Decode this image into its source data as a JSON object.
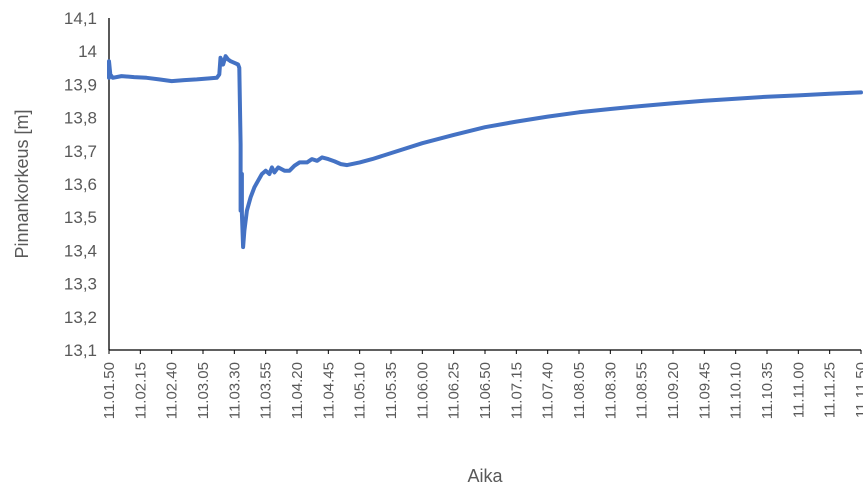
{
  "chart_data": {
    "type": "line",
    "title": "",
    "xlabel": "Aika",
    "ylabel": "Pinnankorkeus [m]",
    "ylim": [
      13.1,
      14.1
    ],
    "y_ticks": [
      "13,1",
      "13,2",
      "13,3",
      "13,4",
      "13,5",
      "13,6",
      "13,7",
      "13,8",
      "13,9",
      "14",
      "14,1"
    ],
    "x_ticks": [
      "11.01.50",
      "11.02.15",
      "11.02.40",
      "11.03.05",
      "11.03.30",
      "11.03.55",
      "11.04.20",
      "11.04.45",
      "11.05.10",
      "11.05.35",
      "11.06.00",
      "11.06.25",
      "11.06.50",
      "11.07.15",
      "11.07.40",
      "11.08.05",
      "11.08.30",
      "11.08.55",
      "11.09.20",
      "11.09.45",
      "11.10.10",
      "11.10.35",
      "11.11.00",
      "11.11.25",
      "11.11.50"
    ],
    "grid": false,
    "legend": "none",
    "series_color": "#4472c4",
    "series": [
      {
        "values": [
          {
            "x": "11.01.50",
            "y": 13.92
          },
          {
            "x": "11.01.50",
            "y": 13.97
          },
          {
            "x": "11.01.51",
            "y": 13.93
          },
          {
            "x": "11.01.53",
            "y": 13.92
          },
          {
            "x": "11.02.00",
            "y": 13.925
          },
          {
            "x": "11.02.10",
            "y": 13.922
          },
          {
            "x": "11.02.20",
            "y": 13.92
          },
          {
            "x": "11.02.30",
            "y": 13.915
          },
          {
            "x": "11.02.40",
            "y": 13.91
          },
          {
            "x": "11.02.50",
            "y": 13.913
          },
          {
            "x": "11.03.00",
            "y": 13.915
          },
          {
            "x": "11.03.10",
            "y": 13.918
          },
          {
            "x": "11.03.16",
            "y": 13.92
          },
          {
            "x": "11.03.18",
            "y": 13.93
          },
          {
            "x": "11.03.19",
            "y": 13.98
          },
          {
            "x": "11.03.20",
            "y": 13.97
          },
          {
            "x": "11.03.21",
            "y": 13.96
          },
          {
            "x": "11.03.23",
            "y": 13.985
          },
          {
            "x": "11.03.25",
            "y": 13.975
          },
          {
            "x": "11.03.27",
            "y": 13.97
          },
          {
            "x": "11.03.30",
            "y": 13.965
          },
          {
            "x": "11.03.33",
            "y": 13.96
          },
          {
            "x": "11.03.34",
            "y": 13.95
          },
          {
            "x": "11.03.35",
            "y": 13.72
          },
          {
            "x": "11.03.35",
            "y": 13.52
          },
          {
            "x": "11.03.36",
            "y": 13.63
          },
          {
            "x": "11.03.36",
            "y": 13.51
          },
          {
            "x": "11.03.37",
            "y": 13.41
          },
          {
            "x": "11.03.38",
            "y": 13.46
          },
          {
            "x": "11.03.40",
            "y": 13.52
          },
          {
            "x": "11.03.43",
            "y": 13.56
          },
          {
            "x": "11.03.46",
            "y": 13.59
          },
          {
            "x": "11.03.49",
            "y": 13.61
          },
          {
            "x": "11.03.52",
            "y": 13.63
          },
          {
            "x": "11.03.55",
            "y": 13.64
          },
          {
            "x": "11.03.58",
            "y": 13.63
          },
          {
            "x": "11.04.00",
            "y": 13.65
          },
          {
            "x": "11.04.02",
            "y": 13.635
          },
          {
            "x": "11.04.05",
            "y": 13.65
          },
          {
            "x": "11.04.10",
            "y": 13.64
          },
          {
            "x": "11.04.14",
            "y": 13.64
          },
          {
            "x": "11.04.18",
            "y": 13.655
          },
          {
            "x": "11.04.22",
            "y": 13.665
          },
          {
            "x": "11.04.28",
            "y": 13.665
          },
          {
            "x": "11.04.32",
            "y": 13.675
          },
          {
            "x": "11.04.36",
            "y": 13.67
          },
          {
            "x": "11.04.40",
            "y": 13.68
          },
          {
            "x": "11.04.45",
            "y": 13.675
          },
          {
            "x": "11.04.50",
            "y": 13.668
          },
          {
            "x": "11.04.55",
            "y": 13.66
          },
          {
            "x": "11.05.00",
            "y": 13.657
          },
          {
            "x": "11.05.10",
            "y": 13.665
          },
          {
            "x": "11.05.20",
            "y": 13.675
          },
          {
            "x": "11.05.35",
            "y": 13.693
          },
          {
            "x": "11.06.00",
            "y": 13.723
          },
          {
            "x": "11.06.25",
            "y": 13.748
          },
          {
            "x": "11.06.50",
            "y": 13.771
          },
          {
            "x": "11.07.15",
            "y": 13.788
          },
          {
            "x": "11.07.40",
            "y": 13.803
          },
          {
            "x": "11.08.05",
            "y": 13.816
          },
          {
            "x": "11.08.30",
            "y": 13.826
          },
          {
            "x": "11.08.55",
            "y": 13.835
          },
          {
            "x": "11.09.20",
            "y": 13.843
          },
          {
            "x": "11.09.45",
            "y": 13.851
          },
          {
            "x": "11.10.10",
            "y": 13.857
          },
          {
            "x": "11.10.35",
            "y": 13.863
          },
          {
            "x": "11.11.00",
            "y": 13.867
          },
          {
            "x": "11.11.25",
            "y": 13.872
          },
          {
            "x": "11.11.50",
            "y": 13.876
          }
        ]
      }
    ]
  }
}
